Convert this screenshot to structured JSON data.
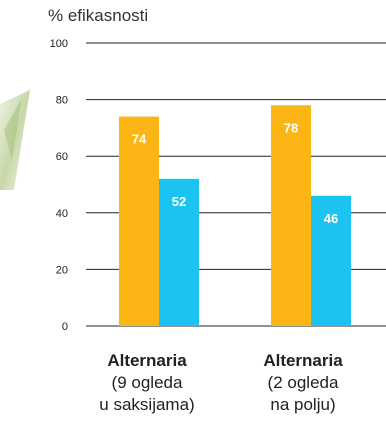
{
  "chart_data": {
    "type": "bar",
    "ylabel": "% efikasnosti",
    "ylim": [
      0,
      100
    ],
    "yticks": [
      "0",
      "20",
      "40",
      "60",
      "80",
      "100"
    ],
    "grid": true,
    "categories": [
      {
        "name": "Alternaria",
        "line1": "(9 ogleda",
        "line2": "u saksijama)"
      },
      {
        "name": "Alternaria",
        "line1": "(2 ogleda",
        "line2": "na polju)"
      }
    ],
    "series": [
      {
        "color": "#FBB616",
        "values": [
          74,
          78
        ]
      },
      {
        "color": "#1CC3F0",
        "values": [
          52,
          46
        ]
      }
    ]
  }
}
